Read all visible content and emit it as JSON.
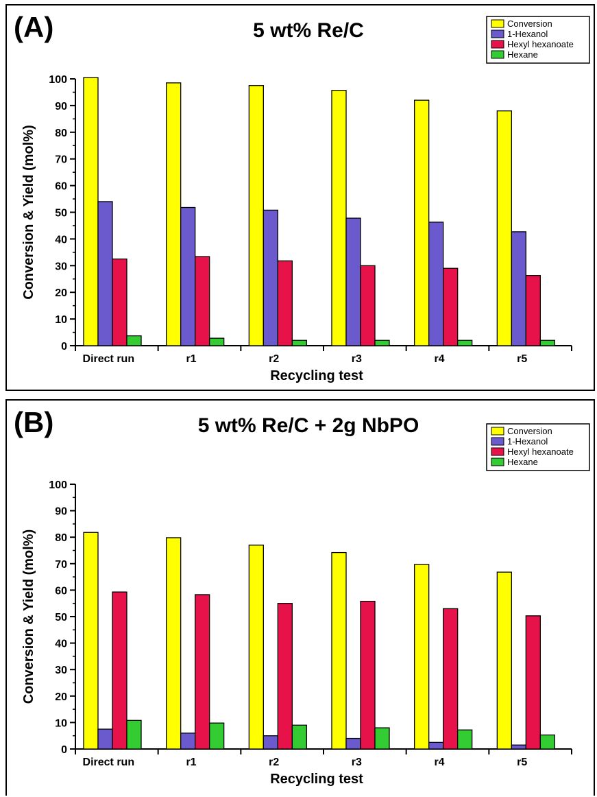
{
  "chart_data": [
    {
      "type": "bar",
      "panel_label": "(A)",
      "title": "5 wt% Re/C",
      "xlabel": "Recycling test",
      "ylabel": "Conversion & Yield (mol%)",
      "ylim": [
        0,
        100
      ],
      "yticks": [
        0,
        10,
        20,
        30,
        40,
        50,
        60,
        70,
        80,
        90,
        100
      ],
      "grid": false,
      "legend_position": "top-right",
      "categories": [
        "Direct run",
        "r1",
        "r2",
        "r3",
        "r4",
        "r5"
      ],
      "series": [
        {
          "name": "Conversion",
          "color": "#ffff00",
          "values": [
            100.5,
            98.5,
            97.5,
            95.7,
            92.0,
            88.0
          ]
        },
        {
          "name": "1-Hexanol",
          "color": "#6a5acd",
          "values": [
            54.0,
            51.8,
            50.8,
            47.8,
            46.3,
            42.7
          ]
        },
        {
          "name": "Hexyl hexanoate",
          "color": "#e8124a",
          "values": [
            32.5,
            33.4,
            31.8,
            30.0,
            29.0,
            26.3
          ]
        },
        {
          "name": "Hexane",
          "color": "#33cc33",
          "values": [
            3.7,
            2.8,
            2.0,
            2.0,
            2.0,
            2.0
          ]
        }
      ]
    },
    {
      "type": "bar",
      "panel_label": "(B)",
      "title": "5 wt% Re/C + 2g NbPO",
      "xlabel": "Recycling test",
      "ylabel": "Conversion & Yield (mol%)",
      "ylim": [
        0,
        100
      ],
      "yticks": [
        0,
        10,
        20,
        30,
        40,
        50,
        60,
        70,
        80,
        90,
        100
      ],
      "grid": false,
      "legend_position": "top-right",
      "categories": [
        "Direct run",
        "r1",
        "r2",
        "r3",
        "r4",
        "r5"
      ],
      "series": [
        {
          "name": "Conversion",
          "color": "#ffff00",
          "values": [
            81.8,
            79.8,
            77.0,
            74.2,
            69.7,
            66.8
          ]
        },
        {
          "name": "1-Hexanol",
          "color": "#6a5acd",
          "values": [
            7.5,
            6.0,
            5.0,
            4.0,
            2.5,
            1.5
          ]
        },
        {
          "name": "Hexyl hexanoate",
          "color": "#e8124a",
          "values": [
            59.3,
            58.3,
            55.0,
            55.8,
            53.0,
            50.3
          ]
        },
        {
          "name": "Hexane",
          "color": "#33cc33",
          "values": [
            10.8,
            9.8,
            9.0,
            8.0,
            7.2,
            5.3
          ]
        }
      ]
    }
  ]
}
